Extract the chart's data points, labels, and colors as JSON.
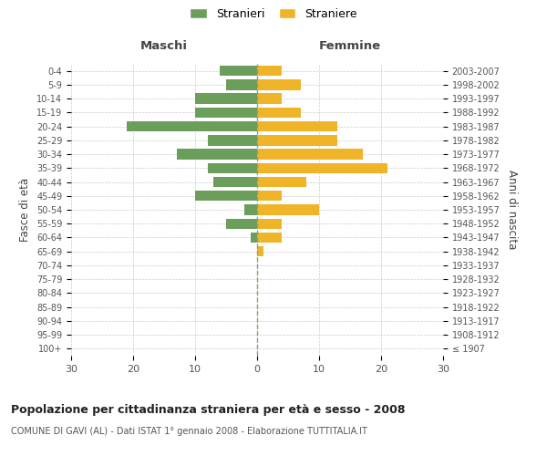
{
  "age_groups": [
    "100+",
    "95-99",
    "90-94",
    "85-89",
    "80-84",
    "75-79",
    "70-74",
    "65-69",
    "60-64",
    "55-59",
    "50-54",
    "45-49",
    "40-44",
    "35-39",
    "30-34",
    "25-29",
    "20-24",
    "15-19",
    "10-14",
    "5-9",
    "0-4"
  ],
  "birth_years": [
    "≤ 1907",
    "1908-1912",
    "1913-1917",
    "1918-1922",
    "1923-1927",
    "1928-1932",
    "1933-1937",
    "1938-1942",
    "1943-1947",
    "1948-1952",
    "1953-1957",
    "1958-1962",
    "1963-1967",
    "1968-1972",
    "1973-1977",
    "1978-1982",
    "1983-1987",
    "1988-1992",
    "1993-1997",
    "1998-2002",
    "2003-2007"
  ],
  "maschi": [
    0,
    0,
    0,
    0,
    0,
    0,
    0,
    0,
    1,
    5,
    2,
    10,
    7,
    8,
    13,
    8,
    21,
    10,
    10,
    5,
    6
  ],
  "femmine": [
    0,
    0,
    0,
    0,
    0,
    0,
    0,
    1,
    4,
    4,
    10,
    4,
    8,
    21,
    17,
    13,
    13,
    7,
    4,
    7,
    4
  ],
  "maschi_color": "#6a9e5a",
  "femmine_color": "#f0b429",
  "title": "Popolazione per cittadinanza straniera per età e sesso - 2008",
  "subtitle": "COMUNE DI GAVI (AL) - Dati ISTAT 1° gennaio 2008 - Elaborazione TUTTITALIA.IT",
  "xlabel_left": "Maschi",
  "xlabel_right": "Femmine",
  "ylabel_left": "Fasce di età",
  "ylabel_right": "Anni di nascita",
  "xlim": 30,
  "legend_stranieri": "Stranieri",
  "legend_straniere": "Straniere",
  "background_color": "#ffffff",
  "grid_color": "#cccccc"
}
